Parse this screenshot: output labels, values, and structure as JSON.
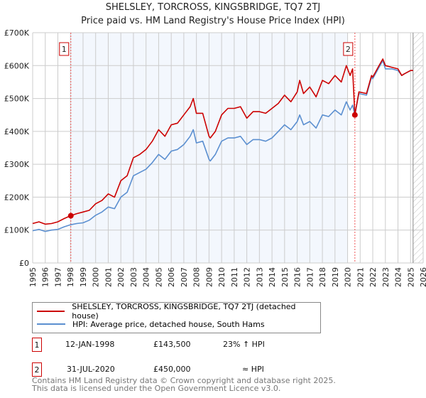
{
  "title": "SHELSLEY, TORCROSS, KINGSBRIDGE, TQ7 2TJ",
  "subtitle": "Price paid vs. HM Land Registry's House Price Index (HPI)",
  "chart_data": {
    "type": "line",
    "title": "SHELSLEY, TORCROSS, KINGSBRIDGE, TQ7 2TJ",
    "xlim": [
      1995,
      2026
    ],
    "ylim": [
      0,
      700000
    ],
    "x_ticks": [
      "1995",
      "1996",
      "1997",
      "1998",
      "1999",
      "2000",
      "2001",
      "2002",
      "2003",
      "2004",
      "2005",
      "2006",
      "2007",
      "2008",
      "2009",
      "2010",
      "2011",
      "2012",
      "2013",
      "2014",
      "2015",
      "2016",
      "2017",
      "2018",
      "2019",
      "2020",
      "2021",
      "2022",
      "2023",
      "2024",
      "2025",
      "2026"
    ],
    "y_ticks": [
      "£0",
      "£100K",
      "£200K",
      "£300K",
      "£400K",
      "£500K",
      "£600K",
      "£700K"
    ],
    "grid": true,
    "series": [
      {
        "name": "SHELSLEY, TORCROSS, KINGSBRIDGE, TQ7 2TJ (detached house)",
        "color": "#cc0000",
        "x": [
          1995,
          1995.5,
          1996,
          1996.5,
          1997,
          1997.5,
          1998,
          1998.5,
          1999,
          1999.5,
          2000,
          2000.5,
          2001,
          2001.5,
          2002,
          2002.5,
          2003,
          2003.5,
          2004,
          2004.5,
          2005,
          2005.5,
          2006,
          2006.5,
          2007,
          2007.5,
          2007.75,
          2008,
          2008.5,
          2009,
          2009.1,
          2009.5,
          2010,
          2010.5,
          2011,
          2011.5,
          2012,
          2012.5,
          2013,
          2013.5,
          2014,
          2014.5,
          2015,
          2015.5,
          2016,
          2016.2,
          2016.5,
          2017,
          2017.5,
          2018,
          2018.5,
          2019,
          2019.5,
          2019.9,
          2020.2,
          2020.4,
          2020.58,
          2020.9,
          2021.5,
          2021.9,
          2022,
          2022.5,
          2022.8,
          2023,
          2023.5,
          2024,
          2024.3,
          2024.5,
          2025,
          2025.2
        ],
        "y": [
          120000,
          125000,
          118000,
          120000,
          125000,
          135000,
          143500,
          150000,
          155000,
          160000,
          180000,
          190000,
          210000,
          200000,
          250000,
          265000,
          320000,
          330000,
          345000,
          370000,
          405000,
          385000,
          420000,
          425000,
          450000,
          475000,
          500000,
          455000,
          455000,
          385000,
          380000,
          400000,
          450000,
          470000,
          470000,
          475000,
          440000,
          460000,
          460000,
          455000,
          470000,
          485000,
          510000,
          490000,
          520000,
          555000,
          515000,
          535000,
          505000,
          555000,
          545000,
          570000,
          550000,
          600000,
          570000,
          590000,
          450000,
          520000,
          515000,
          570000,
          565000,
          600000,
          620000,
          600000,
          595000,
          590000,
          570000,
          575000,
          585000,
          585000
        ]
      },
      {
        "name": "HPI: Average price, detached house, South Hams",
        "color": "#5b8fd0",
        "x": [
          1995,
          1995.5,
          1996,
          1996.5,
          1997,
          1997.5,
          1998,
          1998.5,
          1999,
          1999.5,
          2000,
          2000.5,
          2001,
          2001.5,
          2002,
          2002.5,
          2003,
          2003.5,
          2004,
          2004.5,
          2005,
          2005.5,
          2006,
          2006.5,
          2007,
          2007.5,
          2007.75,
          2008,
          2008.5,
          2009,
          2009.1,
          2009.5,
          2010,
          2010.5,
          2011,
          2011.5,
          2012,
          2012.5,
          2013,
          2013.5,
          2014,
          2014.5,
          2015,
          2015.5,
          2016,
          2016.2,
          2016.5,
          2017,
          2017.5,
          2018,
          2018.5,
          2019,
          2019.5,
          2019.9,
          2020.2,
          2020.4,
          2020.58,
          2020.9,
          2021.5,
          2021.9,
          2022,
          2022.5,
          2022.8,
          2023,
          2023.5,
          2024,
          2024.3,
          2024.5,
          2025,
          2025.2
        ],
        "y": [
          98000,
          102000,
          96000,
          100000,
          102000,
          110000,
          116000,
          120000,
          122000,
          130000,
          145000,
          155000,
          170000,
          165000,
          200000,
          215000,
          265000,
          275000,
          285000,
          305000,
          330000,
          315000,
          340000,
          345000,
          360000,
          385000,
          405000,
          365000,
          370000,
          315000,
          310000,
          330000,
          370000,
          380000,
          380000,
          385000,
          360000,
          375000,
          375000,
          370000,
          380000,
          400000,
          420000,
          405000,
          430000,
          450000,
          420000,
          430000,
          410000,
          450000,
          445000,
          465000,
          450000,
          490000,
          465000,
          480000,
          450000,
          515000,
          510000,
          565000,
          560000,
          595000,
          615000,
          590000,
          590000,
          585000,
          570000,
          575000,
          585000,
          585000
        ]
      }
    ],
    "annotations": [
      {
        "label": "1",
        "x": 1998.03,
        "y": 143500
      },
      {
        "label": "2",
        "x": 2020.58,
        "y": 450000
      }
    ],
    "shaded_range": [
      1998.03,
      2020.0
    ],
    "hatched_from": 2025.2
  },
  "legend": {
    "items": [
      {
        "label": "SHELSLEY, TORCROSS, KINGSBRIDGE, TQ7 2TJ (detached house)",
        "color": "#cc0000"
      },
      {
        "label": "HPI: Average price, detached house, South Hams",
        "color": "#5b8fd0"
      }
    ]
  },
  "transactions": [
    {
      "num": "1",
      "date": "12-JAN-1998",
      "price": "£143,500",
      "hpi": "23% ↑ HPI"
    },
    {
      "num": "2",
      "date": "31-JUL-2020",
      "price": "£450,000",
      "hpi": "≈ HPI"
    }
  ],
  "footer": {
    "line1": "Contains HM Land Registry data © Crown copyright and database right 2025.",
    "line2": "This data is licensed under the Open Government Licence v3.0."
  }
}
